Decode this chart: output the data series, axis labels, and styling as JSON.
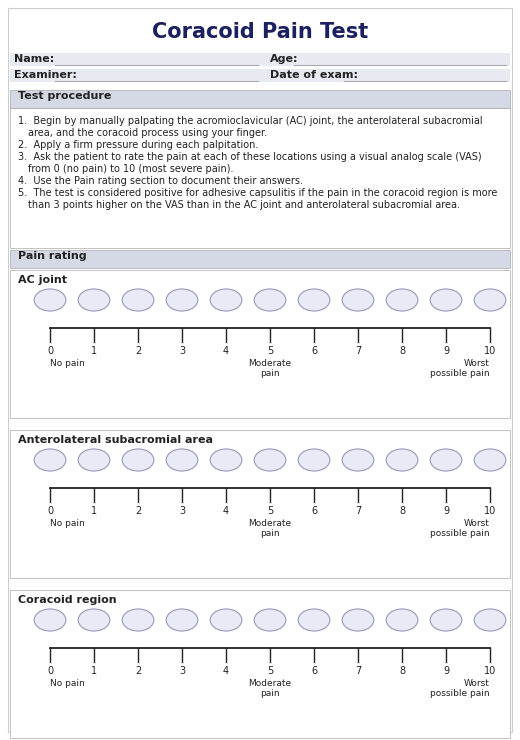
{
  "title": "Coracoid Pain Test",
  "title_color": "#1a2060",
  "title_fontsize": 15,
  "bg_color": "#ffffff",
  "page_bg": "#f5f5f5",
  "field_bg": "#e8eaf2",
  "section_header_bg": "#d5d8e5",
  "border_color": "#aaaaaa",
  "text_color": "#222222",
  "dark_text": "#111111",
  "section1_title": "Test procedure",
  "section2_title": "Pain rating",
  "procedure_lines": [
    [
      "1.",
      "Begin by manually palpating the acromioclavicular (AC) joint, the anterolateral subacromial"
    ],
    [
      "",
      "area, and the coracoid process using your finger."
    ],
    [
      "2.",
      "Apply a firm pressure during each palpitation."
    ],
    [
      "3.",
      "Ask the patient to rate the pain at each of these locations using a visual analog scale (VAS)"
    ],
    [
      "",
      "from 0 (no pain) to 10 (most severe pain)."
    ],
    [
      "4.",
      "Use the Pain rating section to document their answers."
    ],
    [
      "5.",
      "The test is considered positive for adhesive capsulitis if the pain in the coracoid region is more"
    ],
    [
      "",
      "than 3 points higher on the VAS than in the AC joint and anterolateral subacromial area."
    ]
  ],
  "vas_sections": [
    {
      "title": "AC joint"
    },
    {
      "title": "Anterolateral subacromial area"
    },
    {
      "title": "Coracoid region"
    }
  ],
  "circle_face": "#e8eaf5",
  "circle_edge": "#9999bb",
  "line_color": "#222222",
  "font_size_body": 7.0,
  "font_size_section_header": 8.0,
  "font_size_vas_title": 8.0,
  "font_size_scale_num": 7.0,
  "font_size_annot": 6.5
}
